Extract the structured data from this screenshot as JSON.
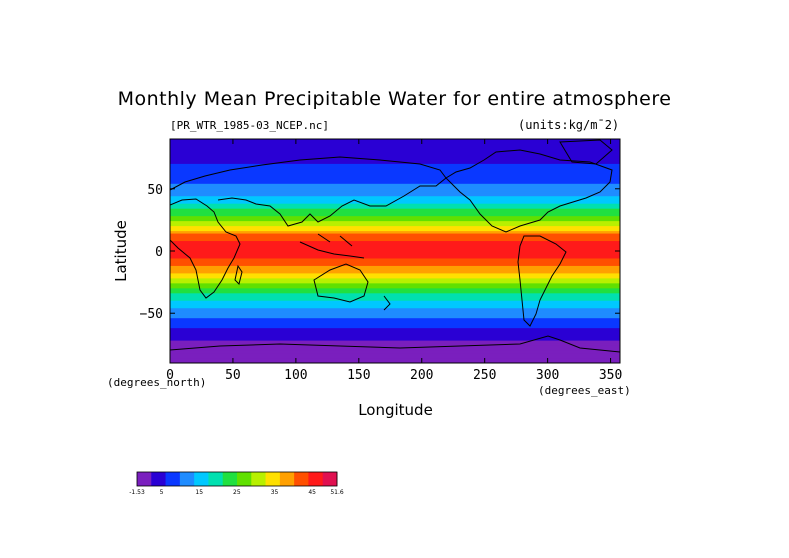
{
  "chart_data": {
    "type": "heatmap",
    "title": "Monthly Mean Precipitable Water for entire atmosphere",
    "source_label": "[PR_WTR_1985-03_NCEP.nc]",
    "units_label": "(units:kg/m¯2)",
    "xlabel": "Longitude",
    "ylabel": "Latitude",
    "x_unit": "(degrees_east)",
    "y_unit": "(degrees_north)",
    "xlim": [
      0,
      357.5
    ],
    "ylim": [
      -90,
      90
    ],
    "x_ticks": [
      {
        "value": 0,
        "label": "0"
      },
      {
        "value": 50,
        "label": "50"
      },
      {
        "value": 100,
        "label": "100"
      },
      {
        "value": 150,
        "label": "150"
      },
      {
        "value": 200,
        "label": "200"
      },
      {
        "value": 250,
        "label": "250"
      },
      {
        "value": 300,
        "label": "300"
      },
      {
        "value": 350,
        "label": "350"
      }
    ],
    "y_ticks": [
      {
        "value": 50,
        "label": "50"
      },
      {
        "value": 0,
        "label": "0"
      },
      {
        "value": -50,
        "label": "−50"
      }
    ],
    "latitude_profile": [
      {
        "lat": 90,
        "value": 3
      },
      {
        "lat": 75,
        "value": 5
      },
      {
        "lat": 60,
        "value": 8
      },
      {
        "lat": 48,
        "value": 12
      },
      {
        "lat": 40,
        "value": 16
      },
      {
        "lat": 30,
        "value": 24
      },
      {
        "lat": 20,
        "value": 33
      },
      {
        "lat": 12,
        "value": 42
      },
      {
        "lat": 5,
        "value": 46
      },
      {
        "lat": -5,
        "value": 45
      },
      {
        "lat": -15,
        "value": 39
      },
      {
        "lat": -25,
        "value": 30
      },
      {
        "lat": -35,
        "value": 21
      },
      {
        "lat": -45,
        "value": 14
      },
      {
        "lat": -55,
        "value": 9
      },
      {
        "lat": -65,
        "value": 5
      },
      {
        "lat": -75,
        "value": 1
      },
      {
        "lat": -90,
        "value": -1
      }
    ],
    "colorbar": {
      "colors": [
        "#7a1fbe",
        "#2a00d4",
        "#0a38ff",
        "#1f8cff",
        "#00c8ff",
        "#00e0b0",
        "#20e040",
        "#60e000",
        "#b8f000",
        "#ffe000",
        "#ffa000",
        "#ff5000",
        "#ff1a1a",
        "#e01050"
      ],
      "min": -1.53,
      "max": 51.6,
      "tick_labels": [
        {
          "value": -1.53,
          "label": "-1.53"
        },
        {
          "value": 5,
          "label": "5"
        },
        {
          "value": 15,
          "label": "15"
        },
        {
          "value": 25,
          "label": "25"
        },
        {
          "value": 35,
          "label": "35"
        },
        {
          "value": 45,
          "label": "45"
        },
        {
          "value": 51.6,
          "label": "51.6"
        }
      ]
    }
  }
}
